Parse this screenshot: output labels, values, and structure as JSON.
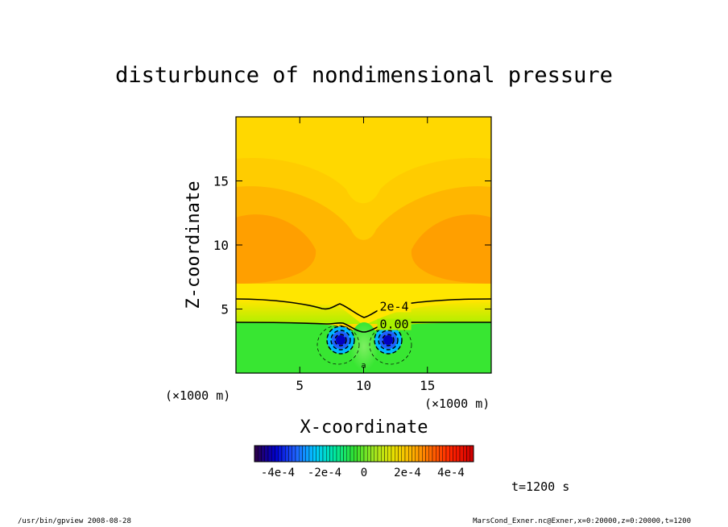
{
  "chart_data": {
    "type": "heatmap",
    "title": "disturbunce of nondimensional pressure",
    "xlabel": "X-coordinate",
    "ylabel": "Z-coordinate",
    "x_unit_label": "(×1000 m)",
    "z_unit_label": "(×1000 m)",
    "xlim": [
      0,
      20
    ],
    "ylim": [
      0,
      20
    ],
    "x_ticks": [
      5,
      10,
      15
    ],
    "y_ticks": [
      5,
      10,
      15
    ],
    "contour_labels": [
      {
        "text": "2e-4",
        "x": 12.4,
        "y": 5.2
      },
      {
        "text": "0.00",
        "x": 12.4,
        "y": 3.8
      }
    ],
    "min_marker": {
      "text": "a",
      "x": 10,
      "y": 0.6
    },
    "negative_centers": [
      {
        "x": 8.0,
        "y": 2.6
      },
      {
        "x": 12.0,
        "y": 2.6
      }
    ],
    "colorbar": {
      "ticks": [
        "-4e-4",
        "-2e-4",
        "0",
        "2e-4",
        "4e-4"
      ],
      "stops": [
        "#2a0050",
        "#0000d0",
        "#2060ff",
        "#00c8ff",
        "#00e8a0",
        "#30e030",
        "#a0e820",
        "#e8e000",
        "#ffb000",
        "#ff6000",
        "#ff2000",
        "#d00000"
      ]
    },
    "time_label": "t=1200 s"
  },
  "footer": {
    "left": "/usr/bin/gpview   2008-08-28",
    "right": "MarsCond_Exner.nc@Exner,x=0:20000,z=0:20000,t=1200"
  },
  "colors": {
    "top": "#ffd800",
    "band1": "#ffcc00",
    "band2": "#ffb600",
    "core": "#ff9f00",
    "near_zero": "#ffe600",
    "light_green": "#a8f000",
    "green": "#38e632",
    "green_center": "#7eef62",
    "blue_outer": "#00b8ff",
    "blue_mid": "#2060ff",
    "blue_core": "#0000c0"
  }
}
